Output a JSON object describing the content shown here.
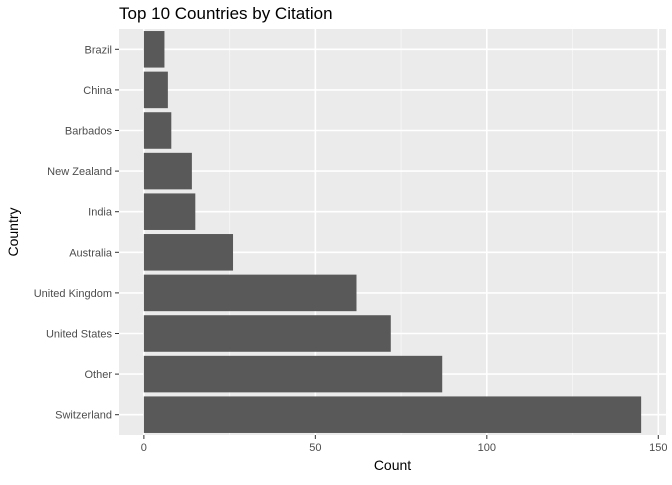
{
  "chart_data": {
    "type": "bar",
    "orientation": "horizontal",
    "title": "Top 10 Countries by Citation",
    "xlabel": "Count",
    "ylabel": "Country",
    "categories": [
      "Brazil",
      "China",
      "Barbados",
      "New Zealand",
      "India",
      "Australia",
      "United Kingdom",
      "United States",
      "Other",
      "Switzerland"
    ],
    "values": [
      6,
      7,
      8,
      14,
      15,
      26,
      62,
      72,
      87,
      145
    ],
    "xlim": [
      -7.25,
      152.25
    ],
    "xticks": [
      0,
      50,
      100,
      150
    ],
    "grid": true,
    "legend": "none",
    "colors": {
      "bar": "#595959",
      "panel": "#ebebeb",
      "grid_major": "#ffffff",
      "grid_minor": "#f5f5f5",
      "tick_text": "#4d4d4d",
      "tick_mark": "#333333"
    }
  }
}
